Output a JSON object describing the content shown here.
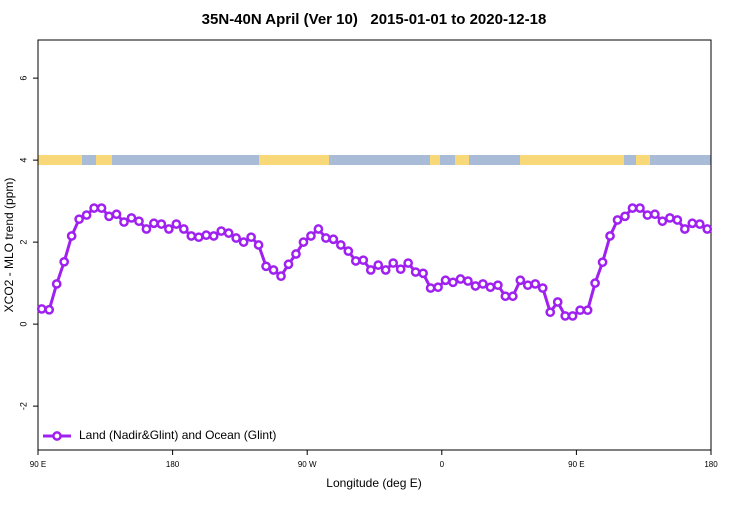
{
  "chart_data": {
    "type": "line",
    "title": "35N-40N April (Ver 10)   2015-01-01 to 2020-12-18",
    "x_label": "Longitude (deg E)",
    "y_label": "XCO2 - MLO trend (ppm)",
    "xlim": [
      90,
      540
    ],
    "ylim": [
      -3.07,
      6.93
    ],
    "xticks": [
      {
        "value": 90,
        "label": "90 E"
      },
      {
        "value": 180,
        "label": "180"
      },
      {
        "value": 270,
        "label": "90 W"
      },
      {
        "value": 360,
        "label": "0"
      },
      {
        "value": 450,
        "label": "90 E"
      },
      {
        "value": 540,
        "label": "180"
      }
    ],
    "yticks": [
      -2,
      0,
      2,
      4,
      6
    ],
    "legend": "bottom left",
    "x": [
      92.5,
      97.5,
      102.5,
      107.5,
      112.5,
      117.5,
      122.5,
      127.5,
      132.5,
      137.5,
      142.5,
      147.5,
      152.5,
      157.5,
      162.5,
      167.5,
      172.5,
      177.5,
      182.5,
      187.5,
      192.5,
      197.5,
      202.5,
      207.5,
      212.5,
      217.5,
      222.5,
      227.5,
      232.5,
      237.5,
      242.5,
      247.5,
      252.5,
      257.5,
      262.5,
      267.5,
      272.5,
      277.5,
      282.5,
      287.5,
      292.5,
      297.5,
      302.5,
      307.5,
      312.5,
      317.5,
      322.5,
      327.5,
      332.5,
      337.5,
      342.5,
      347.5,
      352.5,
      357.5,
      362.5,
      367.5,
      372.5,
      377.5,
      382.5,
      387.5,
      392.5,
      397.5,
      402.5,
      407.5,
      412.5,
      417.5,
      422.5,
      427.5,
      432.5,
      437.5,
      442.5,
      447.5,
      452.5,
      457.5,
      462.5,
      467.5,
      472.5,
      477.5,
      482.5,
      487.5,
      492.5,
      497.5,
      502.5,
      507.5,
      512.5,
      517.5,
      522.5,
      527.5,
      532.5,
      537.5
    ],
    "series": [
      {
        "name": "Land (Nadir&Glint) and Ocean (Glint)",
        "color": "#a020f0",
        "values": [
          0.37,
          0.35,
          0.98,
          1.52,
          2.15,
          2.56,
          2.66,
          2.83,
          2.83,
          2.63,
          2.68,
          2.49,
          2.59,
          2.51,
          2.32,
          2.46,
          2.44,
          2.32,
          2.44,
          2.32,
          2.15,
          2.12,
          2.17,
          2.15,
          2.27,
          2.22,
          2.1,
          2.0,
          2.12,
          1.93,
          1.41,
          1.32,
          1.17,
          1.46,
          1.71,
          2.0,
          2.15,
          2.32,
          2.1,
          2.07,
          1.93,
          1.78,
          1.54,
          1.56,
          1.32,
          1.44,
          1.32,
          1.49,
          1.34,
          1.49,
          1.27,
          1.24,
          0.88,
          0.9,
          1.07,
          1.02,
          1.1,
          1.05,
          0.93,
          0.98,
          0.9,
          0.95,
          0.68,
          0.68,
          1.07,
          0.95,
          0.98,
          0.88,
          0.29,
          0.54,
          0.2,
          0.2,
          0.34,
          0.34,
          1.0,
          1.51,
          2.15,
          2.54,
          2.63,
          2.83,
          2.83,
          2.66,
          2.68,
          2.51,
          2.59,
          2.54,
          2.32,
          2.46,
          2.44,
          2.32
        ]
      }
    ]
  }
}
